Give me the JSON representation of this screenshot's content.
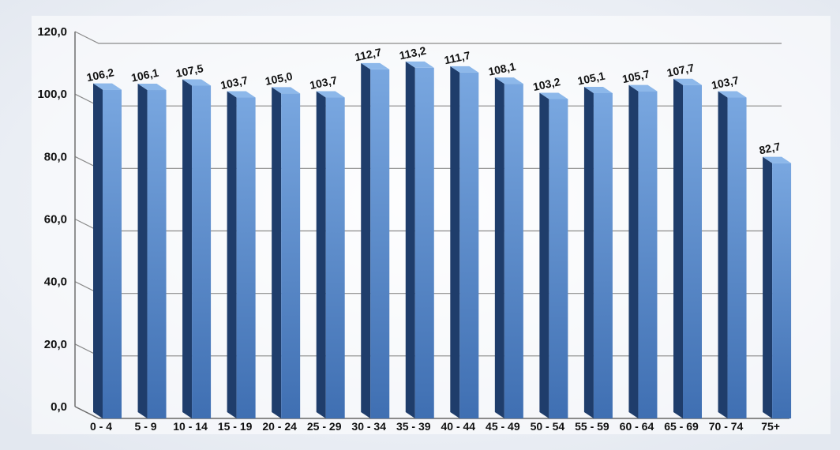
{
  "chart_data": {
    "type": "bar",
    "categories": [
      "0 - 4",
      "5 - 9",
      "10 - 14",
      "15 - 19",
      "20 - 24",
      "25 - 29",
      "30 - 34",
      "35 - 39",
      "40 - 44",
      "45 - 49",
      "50 - 54",
      "55 - 59",
      "60 - 64",
      "65 - 69",
      "70 - 74",
      "75+"
    ],
    "values": [
      106.2,
      106.1,
      107.5,
      103.7,
      105.0,
      103.7,
      112.7,
      113.2,
      111.7,
      108.1,
      103.2,
      105.1,
      105.7,
      107.7,
      103.7,
      82.7
    ],
    "data_labels": [
      "106,2",
      "106,1",
      "107,5",
      "103,7",
      "105,0",
      "103,7",
      "112,7",
      "113,2",
      "111,7",
      "108,1",
      "103,2",
      "105,1",
      "105,7",
      "107,7",
      "103,7",
      "82,7"
    ],
    "y_ticks": [
      "0,0",
      "20,0",
      "40,0",
      "60,0",
      "80,0",
      "100,0",
      "120,0"
    ],
    "ylim": [
      0,
      120
    ],
    "grid": true,
    "legend": "none",
    "title": "",
    "xlabel": "",
    "ylabel": "",
    "colors": {
      "bar_front_top": "#79a7e0",
      "bar_front_bottom": "#3f6fb2",
      "bar_side": "#1f3d6b",
      "bar_top": "#8db8ea",
      "gridline": "#8a8a8a",
      "axis": "#6f6f6f"
    }
  }
}
